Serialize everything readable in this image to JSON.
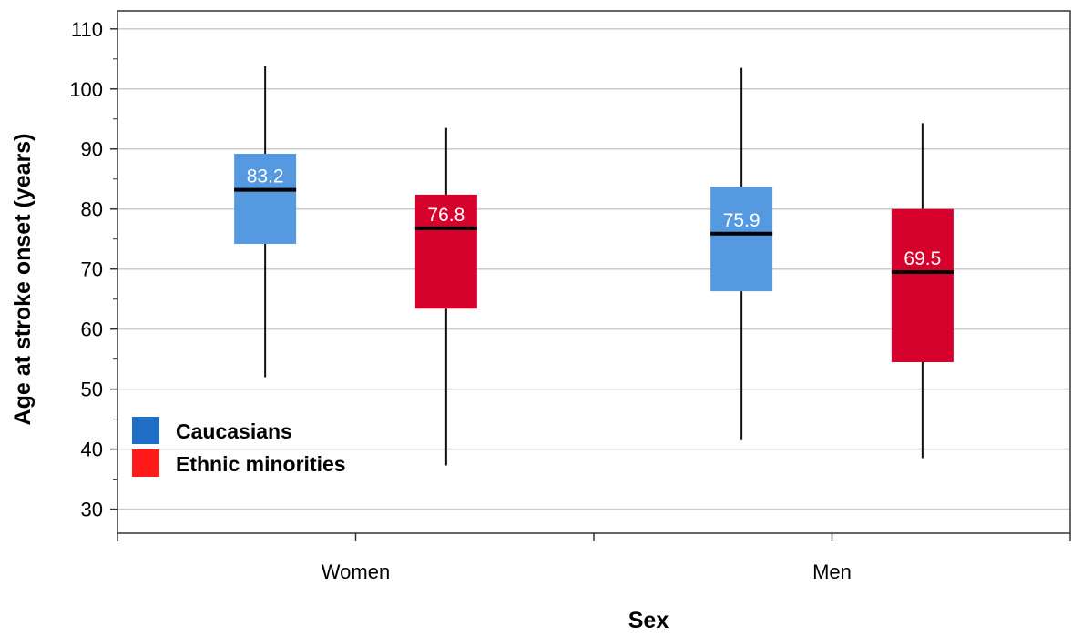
{
  "chart_data": {
    "type": "box",
    "xlabel": "Sex",
    "ylabel": "Age at stroke onset (years)",
    "ylim": [
      26,
      113
    ],
    "yticks": [
      30,
      40,
      50,
      60,
      70,
      80,
      90,
      100,
      110
    ],
    "grid": "horizontal",
    "legend_position": "bottom-left",
    "categories": [
      "Women",
      "Men"
    ],
    "series": [
      {
        "name": "Caucasians",
        "color": "#5599e0",
        "legend_color": "#1f6fc8",
        "boxes": [
          {
            "category": "Women",
            "whisker_low": 52.0,
            "q1": 74.2,
            "median": 83.2,
            "q3": 89.2,
            "whisker_high": 103.8,
            "label": "83.2"
          },
          {
            "category": "Men",
            "whisker_low": 41.5,
            "q1": 66.3,
            "median": 75.9,
            "q3": 83.7,
            "whisker_high": 103.5,
            "label": "75.9"
          }
        ]
      },
      {
        "name": "Ethnic minorities",
        "color": "#d6002c",
        "legend_color": "#ff1a1a",
        "boxes": [
          {
            "category": "Women",
            "whisker_low": 37.3,
            "q1": 63.4,
            "median": 76.8,
            "q3": 82.4,
            "whisker_high": 93.5,
            "label": "76.8"
          },
          {
            "category": "Men",
            "whisker_low": 38.5,
            "q1": 54.5,
            "median": 69.5,
            "q3": 80.0,
            "whisker_high": 94.3,
            "label": "69.5"
          }
        ]
      }
    ]
  }
}
